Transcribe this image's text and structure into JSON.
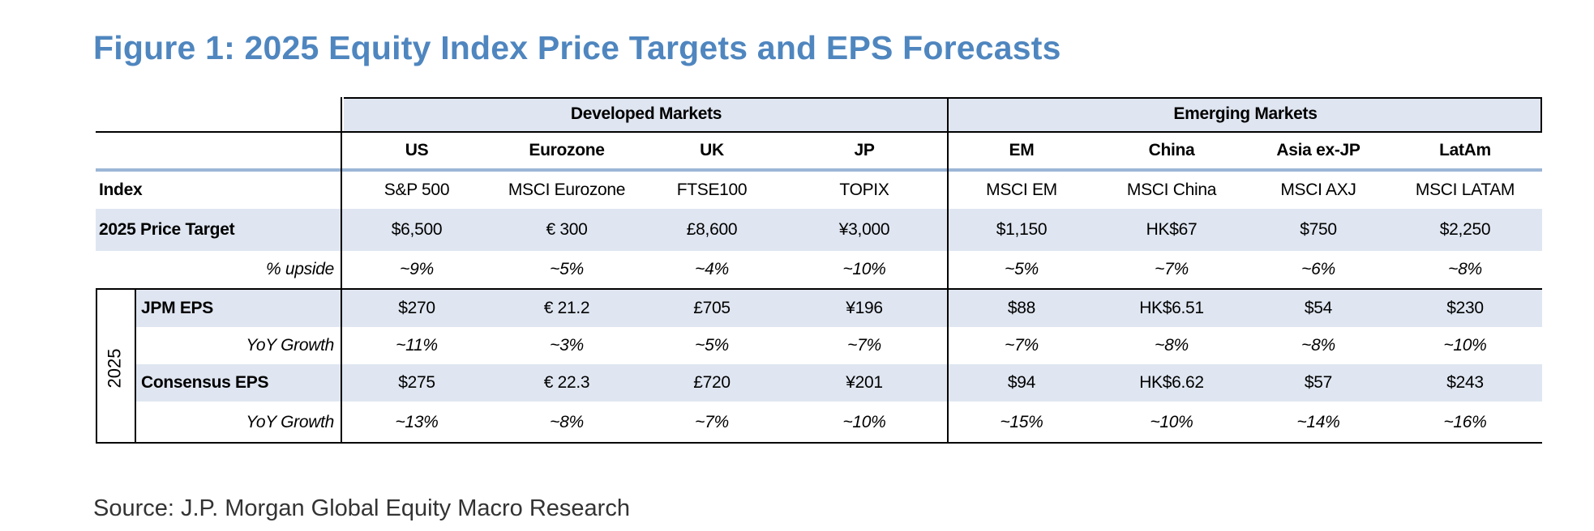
{
  "title": "Figure 1: 2025 Equity Index Price Targets and EPS Forecasts",
  "source": "Source: J.P. Morgan Global Equity Macro Research",
  "groups": {
    "developed": "Developed Markets",
    "emerging": "Emerging Markets"
  },
  "columns": [
    "US",
    "Eurozone",
    "UK",
    "JP",
    "EM",
    "China",
    "Asia ex-JP",
    "LatAm"
  ],
  "year_label": "2025",
  "rows": [
    {
      "label": "Index",
      "values": [
        "S&P 500",
        "MSCI Eurozone",
        "FTSE100",
        "TOPIX",
        "MSCI EM",
        "MSCI China",
        "MSCI AXJ",
        "MSCI LATAM"
      ]
    },
    {
      "label": "2025 Price Target",
      "values": [
        "$6,500",
        "€ 300",
        "£8,600",
        "¥3,000",
        "$1,150",
        "HK$67",
        "$750",
        "$2,250"
      ]
    },
    {
      "label": "% upside",
      "values": [
        "~9%",
        "~5%",
        "~4%",
        "~10%",
        "~5%",
        "~7%",
        "~6%",
        "~8%"
      ]
    },
    {
      "label": "JPM EPS",
      "values": [
        "$270",
        "€ 21.2",
        "£705",
        "¥196",
        "$88",
        "HK$6.51",
        "$54",
        "$230"
      ]
    },
    {
      "label": "YoY Growth",
      "values": [
        "~11%",
        "~3%",
        "~5%",
        "~7%",
        "~7%",
        "~8%",
        "~8%",
        "~10%"
      ]
    },
    {
      "label": "Consensus EPS",
      "values": [
        "$275",
        "€ 22.3",
        "£720",
        "¥201",
        "$94",
        "HK$6.62",
        "$57",
        "$243"
      ]
    },
    {
      "label": "YoY Growth",
      "values": [
        "~13%",
        "~8%",
        "~7%",
        "~10%",
        "~15%",
        "~10%",
        "~14%",
        "~16%"
      ]
    }
  ]
}
